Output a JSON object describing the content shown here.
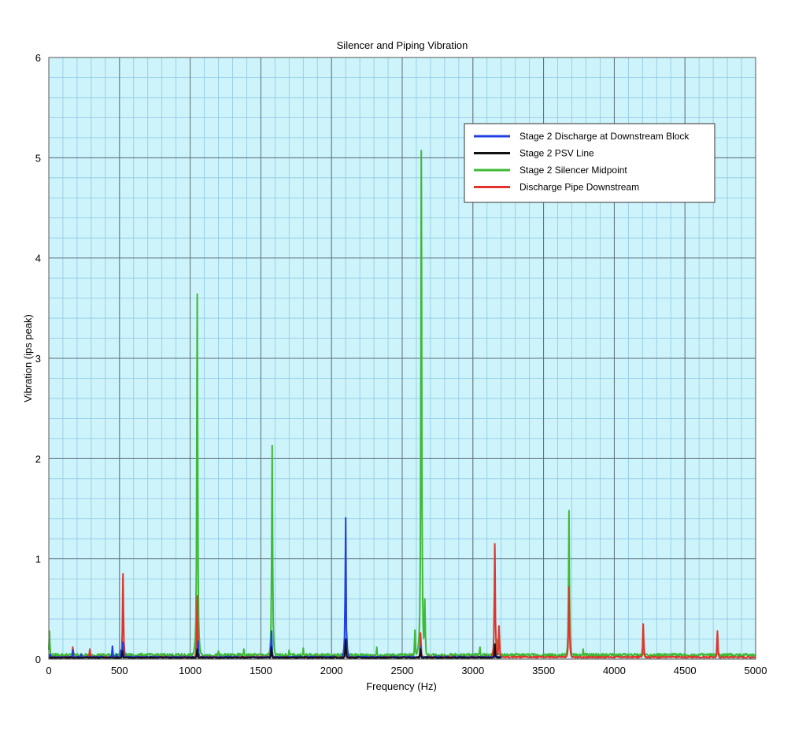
{
  "chart_data": {
    "type": "line",
    "title": "Silencer and Piping Vibration",
    "xlabel": "Frequency (Hz)",
    "ylabel": "Vibration (ips peak)",
    "xlim": [
      0,
      5000
    ],
    "ylim": [
      0,
      6
    ],
    "x_ticks": [
      0,
      500,
      1000,
      1500,
      2000,
      2500,
      3000,
      3500,
      4000,
      4500,
      5000
    ],
    "y_ticks": [
      0,
      1,
      2,
      3,
      4,
      5,
      6
    ],
    "grid": true,
    "minor_grid": true,
    "legend_position": "top-right",
    "plot_background": "#cdf3fb",
    "series": [
      {
        "name": "Stage 2 Discharge at Downstream Block",
        "color": "#1f3fe0",
        "x_range": [
          0,
          3200
        ],
        "baseline": 0.02,
        "peaks": [
          [
            10,
            0.05
          ],
          [
            170,
            0.09
          ],
          [
            230,
            0.05
          ],
          [
            450,
            0.13
          ],
          [
            480,
            0.05
          ],
          [
            510,
            0.09
          ],
          [
            525,
            0.17
          ],
          [
            1055,
            0.18
          ],
          [
            1575,
            0.28
          ],
          [
            2100,
            1.41
          ],
          [
            2105,
            0.3
          ],
          [
            2630,
            0.12
          ],
          [
            3160,
            0.06
          ]
        ]
      },
      {
        "name": "Stage 2 PSV Line",
        "color": "#111111",
        "x_range": [
          0,
          3200
        ],
        "baseline": 0.015,
        "peaks": [
          [
            520,
            0.08
          ],
          [
            1050,
            0.1
          ],
          [
            1575,
            0.12
          ],
          [
            2100,
            0.2
          ],
          [
            2630,
            0.1
          ],
          [
            3155,
            0.15
          ]
        ]
      },
      {
        "name": "Stage 2 Silencer Midpoint",
        "color": "#3dba34",
        "x_range": [
          0,
          5000
        ],
        "baseline": 0.04,
        "peaks": [
          [
            5,
            0.28
          ],
          [
            520,
            0.05
          ],
          [
            1050,
            3.64
          ],
          [
            1200,
            0.08
          ],
          [
            1380,
            0.1
          ],
          [
            1580,
            2.13
          ],
          [
            1700,
            0.09
          ],
          [
            1800,
            0.11
          ],
          [
            2100,
            0.16
          ],
          [
            2320,
            0.12
          ],
          [
            2590,
            0.29
          ],
          [
            2635,
            5.07
          ],
          [
            2660,
            0.6
          ],
          [
            3050,
            0.12
          ],
          [
            3170,
            0.2
          ],
          [
            3680,
            1.48
          ],
          [
            3780,
            0.1
          ],
          [
            4210,
            0.12
          ],
          [
            4730,
            0.1
          ]
        ]
      },
      {
        "name": "Discharge Pipe Downstream",
        "color": "#e0342c",
        "x_range": [
          0,
          5000
        ],
        "baseline": 0.02,
        "peaks": [
          [
            170,
            0.12
          ],
          [
            290,
            0.1
          ],
          [
            525,
            0.85
          ],
          [
            1050,
            0.63
          ],
          [
            1575,
            0.1
          ],
          [
            2100,
            0.13
          ],
          [
            2630,
            0.26
          ],
          [
            3155,
            1.15
          ],
          [
            3185,
            0.33
          ],
          [
            3680,
            0.72
          ],
          [
            4205,
            0.35
          ],
          [
            4730,
            0.28
          ]
        ]
      }
    ]
  }
}
